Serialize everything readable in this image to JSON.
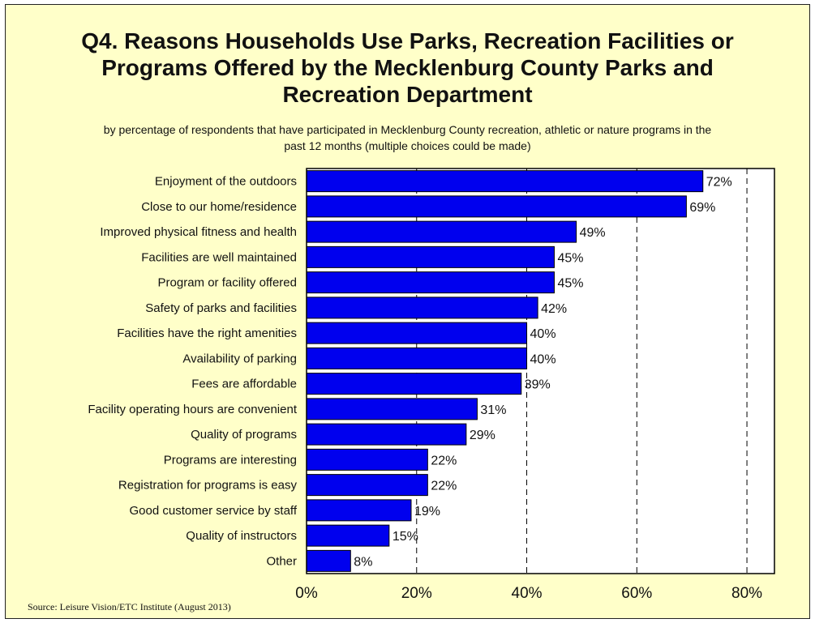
{
  "title_lines": [
    "Q4. Reasons Households Use Parks, Recreation Facilities or",
    "Programs Offered by the Mecklenburg County Parks and",
    "Recreation Department"
  ],
  "subtitle_lines": [
    "by percentage of respondents that have participated in Mecklenburg County recreation, athletic or nature programs in the",
    "past 12 months (multiple choices could be made)"
  ],
  "source": "Source:  Leisure Vision/ETC Institute (August 2013)",
  "colors": {
    "background": "#ffffc9",
    "bar": "#0000ee",
    "bar_outline": "#000000"
  },
  "chart_data": {
    "type": "bar",
    "orientation": "horizontal",
    "categories": [
      "Enjoyment of the outdoors",
      "Close to our home/residence",
      "Improved physical fitness and health",
      "Facilities are well maintained",
      "Program or facility offered",
      "Safety of parks and facilities",
      "Facilities have the right amenities",
      "Availability of parking",
      "Fees are affordable",
      "Facility operating hours are convenient",
      "Quality of programs",
      "Programs are interesting",
      "Registration for programs is easy",
      "Good customer service by staff",
      "Quality of instructors",
      "Other"
    ],
    "values": [
      72,
      69,
      49,
      45,
      45,
      42,
      40,
      40,
      39,
      31,
      29,
      22,
      22,
      19,
      15,
      8
    ],
    "value_labels": [
      "72%",
      "69%",
      "49%",
      "45%",
      "45%",
      "42%",
      "40%",
      "40%",
      "39%",
      "31%",
      "29%",
      "22%",
      "22%",
      "19%",
      "15%",
      "8%"
    ],
    "xlim": [
      0,
      85
    ],
    "xticks": [
      0,
      20,
      40,
      60,
      80
    ],
    "xtick_labels": [
      "0%",
      "20%",
      "40%",
      "60%",
      "80%"
    ],
    "grid": "vertical dashed",
    "legend": "none"
  }
}
